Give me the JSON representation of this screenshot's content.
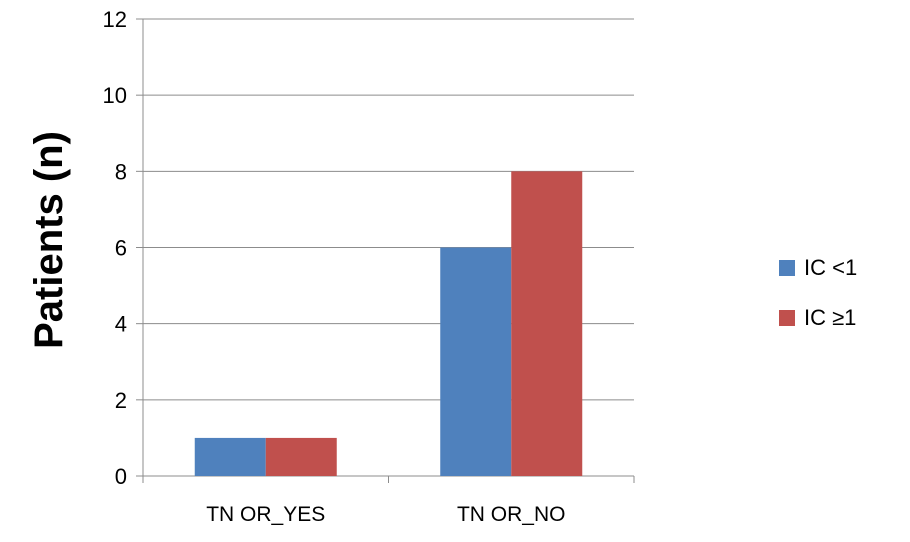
{
  "chart_data": {
    "type": "bar",
    "categories": [
      "TN OR_YES",
      "TN OR_NO"
    ],
    "series": [
      {
        "name": "IC <1",
        "values": [
          1,
          6
        ],
        "color": "#4F81BD"
      },
      {
        "name": "IC ≥1",
        "values": [
          1,
          8
        ],
        "color": "#C0504D"
      }
    ],
    "xlabel": "",
    "ylabel": "Patients (n)",
    "ylim": [
      0,
      12
    ],
    "yticks": [
      0,
      2,
      4,
      6,
      8,
      10,
      12
    ],
    "grid": true,
    "legend_position": "right"
  }
}
